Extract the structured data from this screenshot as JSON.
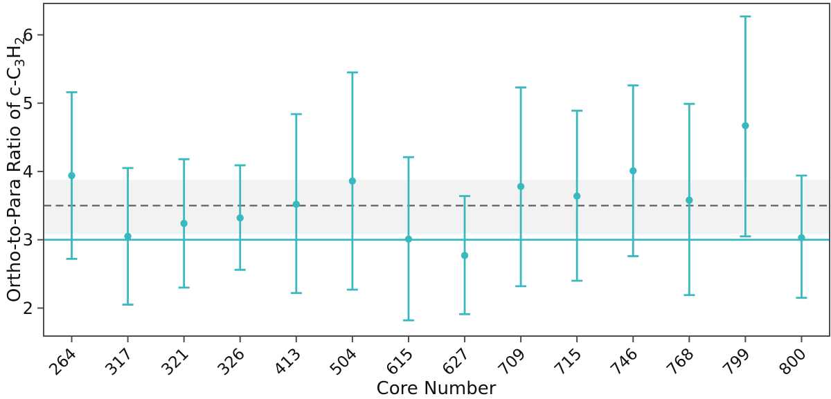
{
  "chart_data": {
    "type": "scatter",
    "subtype": "errorbar",
    "title": "",
    "xlabel": "Core Number",
    "ylabel": "Ortho-to-Para Ratio of c-C₃H₂",
    "ylabel_parts": {
      "text": "Ortho-to-Para Ratio of c-C",
      "sub_a": "3",
      "text_b": "H",
      "sub_b": "2"
    },
    "categories": [
      "264",
      "317",
      "321",
      "326",
      "413",
      "504",
      "615",
      "627",
      "709",
      "715",
      "746",
      "768",
      "799",
      "800"
    ],
    "series": [
      {
        "name": "core-opr",
        "values": [
          3.94,
          3.05,
          3.24,
          3.32,
          3.52,
          3.86,
          3.01,
          2.77,
          3.78,
          3.64,
          4.01,
          3.58,
          4.67,
          3.03
        ],
        "err_upper": [
          5.16,
          4.05,
          4.18,
          4.09,
          4.84,
          5.45,
          4.21,
          3.64,
          5.23,
          4.89,
          5.26,
          4.99,
          6.27,
          3.94
        ],
        "err_lower": [
          2.72,
          2.05,
          2.3,
          2.56,
          2.22,
          2.27,
          1.82,
          1.91,
          2.32,
          2.4,
          2.76,
          2.19,
          3.05,
          2.15
        ]
      }
    ],
    "reference_lines": [
      {
        "name": "solid-reference",
        "value": 3.0,
        "style": "solid"
      },
      {
        "name": "dashed-reference",
        "value": 3.5,
        "style": "dashed"
      }
    ],
    "reference_band": {
      "low": 3.09,
      "high": 3.88
    },
    "yticks": [
      2,
      3,
      4,
      5,
      6
    ],
    "ylim": [
      1.59,
      6.46
    ],
    "grid": false,
    "legend": false,
    "colors": {
      "series": "#38b9bf",
      "dashed_line": "#666666",
      "band": "#f2f2f2",
      "spine": "#4d4d4d",
      "tick_text": "#111111"
    }
  }
}
